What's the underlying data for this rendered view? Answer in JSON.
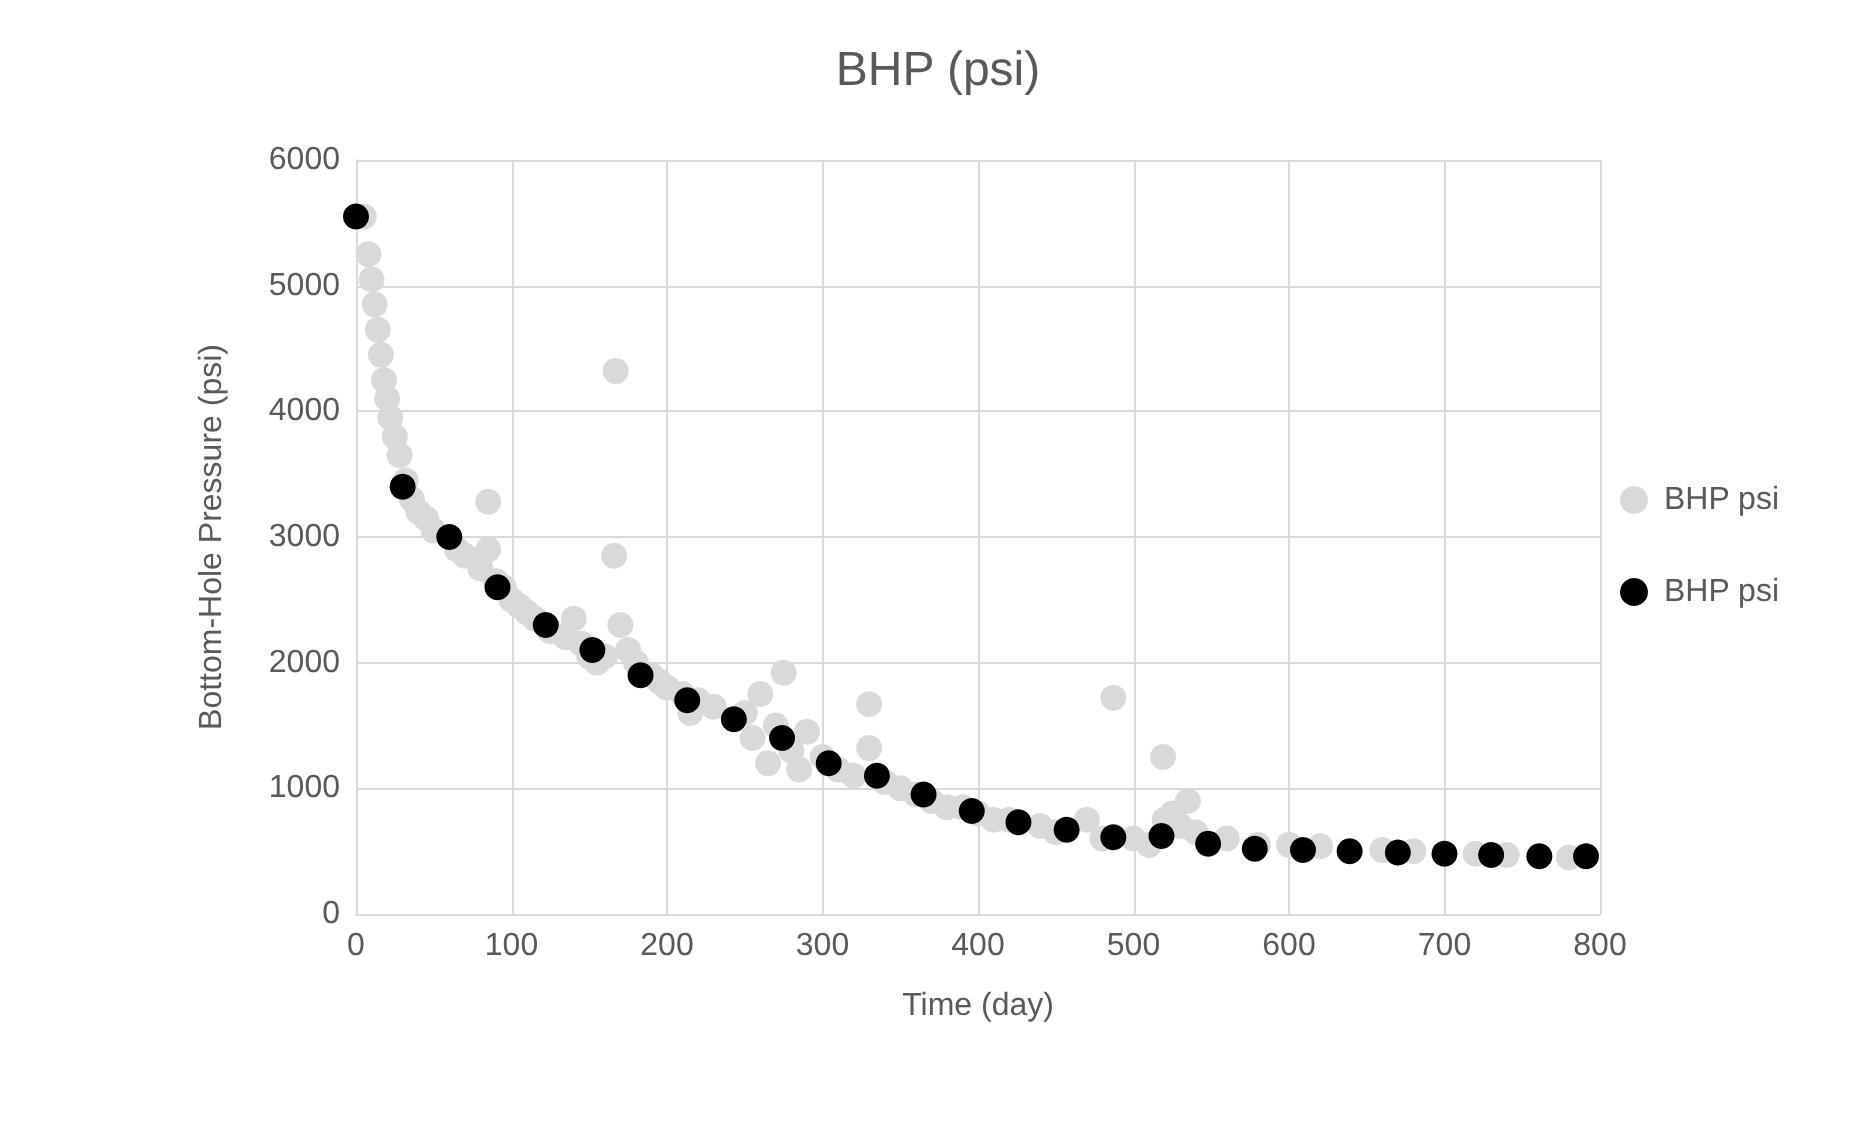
{
  "chart_data": {
    "type": "scatter",
    "title": "BHP (psi)",
    "xlabel": "Time (day)",
    "ylabel": "Bottom-Hole Pressure (psi)",
    "xlim": [
      0,
      800
    ],
    "xticks": [
      0,
      100,
      200,
      300,
      400,
      500,
      600,
      700,
      800
    ],
    "ylim": [
      0,
      6000
    ],
    "yticks": [
      0,
      1000,
      2000,
      3000,
      4000,
      5000,
      6000
    ],
    "grid": true,
    "legend": "right",
    "marker": "circle",
    "series": [
      {
        "name": "BHP psi",
        "color": "#d9d9d9",
        "x": [
          5,
          8,
          10,
          12,
          14,
          16,
          18,
          20,
          22,
          25,
          28,
          32,
          36,
          40,
          45,
          50,
          65,
          70,
          80,
          85,
          85,
          90,
          95,
          100,
          105,
          110,
          115,
          125,
          135,
          140,
          145,
          150,
          155,
          160,
          166,
          167,
          170,
          175,
          180,
          190,
          195,
          200,
          210,
          215,
          220,
          230,
          250,
          255,
          260,
          265,
          270,
          275,
          280,
          285,
          290,
          300,
          310,
          320,
          330,
          330,
          340,
          350,
          360,
          370,
          380,
          390,
          400,
          410,
          420,
          440,
          450,
          470,
          480,
          487,
          500,
          510,
          519,
          520,
          525,
          530,
          535,
          540,
          560,
          580,
          600,
          620,
          660,
          680,
          720,
          740,
          780
        ],
        "values": [
          5550,
          5250,
          5050,
          4850,
          4650,
          4450,
          4250,
          4100,
          3950,
          3800,
          3650,
          3450,
          3300,
          3200,
          3150,
          3050,
          2900,
          2850,
          2750,
          2900,
          3280,
          2650,
          2600,
          2500,
          2450,
          2400,
          2350,
          2250,
          2200,
          2350,
          2150,
          2050,
          2000,
          2050,
          2850,
          4320,
          2300,
          2100,
          2000,
          1900,
          1850,
          1800,
          1750,
          1600,
          1700,
          1650,
          1600,
          1400,
          1750,
          1200,
          1500,
          1920,
          1300,
          1150,
          1450,
          1250,
          1150,
          1100,
          1670,
          1320,
          1050,
          1000,
          950,
          900,
          850,
          850,
          800,
          750,
          750,
          700,
          650,
          750,
          600,
          1720,
          600,
          550,
          1250,
          750,
          800,
          700,
          900,
          650,
          600,
          550,
          550,
          540,
          510,
          500,
          480,
          470,
          450
        ]
      },
      {
        "name": "BHP psi",
        "color": "#000000",
        "x": [
          0,
          30,
          60,
          91,
          122,
          152,
          183,
          213,
          243,
          274,
          304,
          335,
          365,
          396,
          426,
          457,
          487,
          518,
          548,
          578,
          609,
          639,
          670,
          700,
          730,
          761,
          791
        ],
        "values": [
          5550,
          3400,
          3000,
          2600,
          2300,
          2100,
          1900,
          1700,
          1550,
          1400,
          1200,
          1100,
          950,
          820,
          730,
          670,
          610,
          620,
          560,
          520,
          510,
          500,
          490,
          480,
          470,
          460,
          460
        ]
      }
    ]
  }
}
